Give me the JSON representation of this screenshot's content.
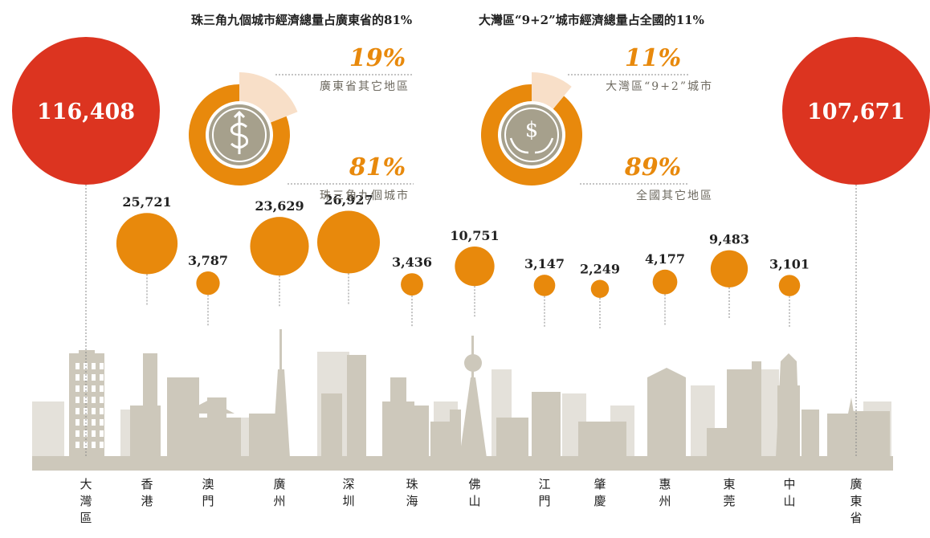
{
  "headline": {
    "left": "珠三角九個城市經濟總量占廣東省的81%",
    "right": "大灣區“9+2”城市經濟總量占全國的11%"
  },
  "colors": {
    "red": "#dc3420",
    "orange": "#e8890c",
    "light_orange": "#f8dfc8",
    "coin": "#a6a08c",
    "skyline": "#cdc8bb",
    "skyline_light": "#e4e1da",
    "pct_text": "#e8890c",
    "label_text": "#6e6a60",
    "value_text": "#222222",
    "connector": "#999999"
  },
  "chart_data": [
    {
      "type": "pie",
      "title": "",
      "icon": "dollar-growth-icon",
      "slices": [
        {
          "label": "珠三角九個城市",
          "percent_label": "81%",
          "value": 81
        },
        {
          "label": "廣東省其它地區",
          "percent_label": "19%",
          "value": 19
        }
      ]
    },
    {
      "type": "pie",
      "title": "",
      "icon": "hands-dollar-icon",
      "slices": [
        {
          "label": "全國其它地區",
          "percent_label": "89%",
          "value": 89
        },
        {
          "label": "大灣區“9+2”城市",
          "percent_label": "11%",
          "value": 11
        }
      ]
    },
    {
      "type": "scatter",
      "title": "",
      "categories": [
        "大灣區",
        "香港",
        "澳門",
        "廣州",
        "深圳",
        "珠海",
        "佛山",
        "江門",
        "肇慶",
        "惠州",
        "東莞",
        "中山",
        "廣東省"
      ],
      "values": [
        116408,
        25721,
        3787,
        23629,
        26927,
        3436,
        10751,
        3147,
        2249,
        4177,
        9483,
        3101,
        107671
      ],
      "value_labels": [
        "116,408",
        "25,721",
        "3,787",
        "23,629",
        "26,927",
        "3,436",
        "10,751",
        "3,147",
        "2,249",
        "4,177",
        "9,483",
        "3,101",
        "107,671"
      ],
      "totals": [
        "大灣區",
        "廣東省"
      ]
    }
  ]
}
